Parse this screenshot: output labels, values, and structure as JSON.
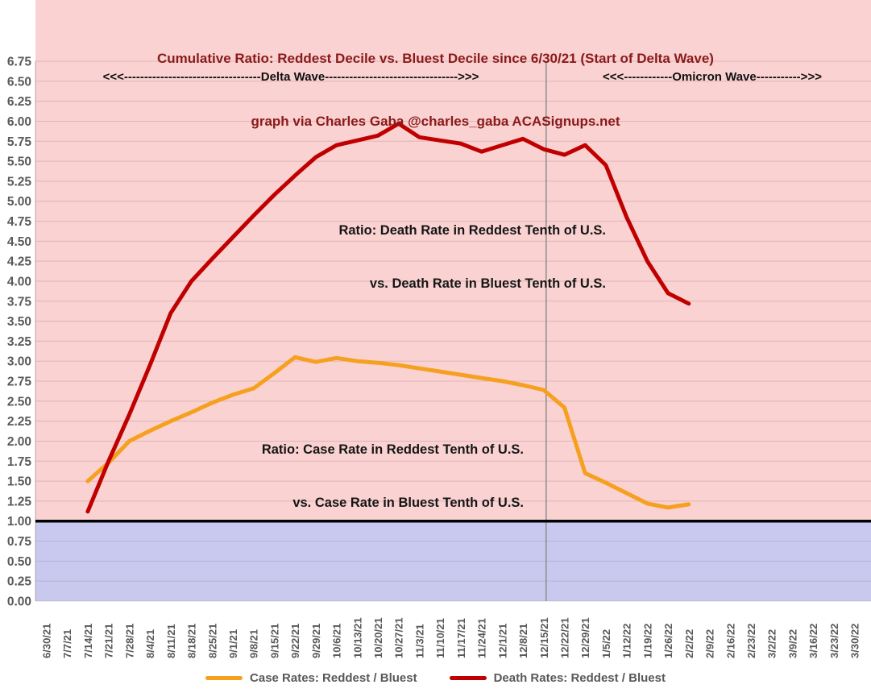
{
  "title": {
    "line1": "Cumulative Ratio: Reddest Decile vs. Bluest Decile since 6/30/21 (Start of Delta Wave)",
    "line2": "graph via Charles Gaba @charles_gaba ACASignups.net"
  },
  "annotations": {
    "delta_wave": "<<<----------------------------------Delta Wave--------------------------------->>>",
    "omicron_wave": "<<<------------Omicron Wave----------->>>",
    "death_ratio_line1": "Ratio: Death Rate in Reddest Tenth of U.S.",
    "death_ratio_line2": "vs. Death Rate in Bluest Tenth of U.S.",
    "case_ratio_line1": "Ratio: Case Rate in Reddest Tenth of U.S.",
    "case_ratio_line2": "vs. Case Rate in Bluest Tenth of U.S."
  },
  "colors": {
    "case_line": "#F5A01E",
    "death_line": "#C00000",
    "plot_bg_above_1": "#FAD2D2",
    "plot_bg_below_1": "#C9C9F0",
    "gridline": "rgba(130,75,90,0.22)",
    "baseline": "#000000",
    "divider": "#8C8C8C",
    "title_text": "#8B1A1A",
    "axis_text": "#595959",
    "legend_text": "#595959"
  },
  "legend": {
    "items": [
      {
        "label": "Case Rates: Reddest / Bluest"
      },
      {
        "label": "Death Rates: Reddest / Bluest"
      }
    ]
  },
  "chart_data": {
    "type": "line",
    "title": "Cumulative Ratio: Reddest Decile vs. Bluest Decile since 6/30/21 (Start of Delta Wave)",
    "subtitle": "graph via Charles Gaba @charles_gaba ACASignups.net",
    "xlabel": "",
    "ylabel": "",
    "ylim": [
      0,
      6.75
    ],
    "ytick_step": 0.25,
    "ytick_labels": [
      "0.00",
      "0.25",
      "0.50",
      "0.75",
      "1.00",
      "1.25",
      "1.50",
      "1.75",
      "2.00",
      "2.25",
      "2.50",
      "2.75",
      "3.00",
      "3.25",
      "3.50",
      "3.75",
      "4.00",
      "4.25",
      "4.50",
      "4.75",
      "5.00",
      "5.25",
      "5.50",
      "5.75",
      "6.00",
      "6.25",
      "6.50",
      "6.75"
    ],
    "grid": true,
    "legend_position": "bottom",
    "baseline_value": 1.0,
    "divider_category": "12/15/21",
    "categories": [
      "6/30/21",
      "7/7/21",
      "7/14/21",
      "7/21/21",
      "7/28/21",
      "8/4/21",
      "8/11/21",
      "8/18/21",
      "8/25/21",
      "9/1/21",
      "9/8/21",
      "9/15/21",
      "9/22/21",
      "9/29/21",
      "10/6/21",
      "10/13/21",
      "10/20/21",
      "10/27/21",
      "11/3/21",
      "11/10/21",
      "11/17/21",
      "11/24/21",
      "12/1/21",
      "12/8/21",
      "12/15/21",
      "12/22/21",
      "12/29/21",
      "1/5/22",
      "1/12/22",
      "1/19/22",
      "1/26/22",
      "2/2/22",
      "2/9/22",
      "2/16/22",
      "2/23/22",
      "3/2/22",
      "3/9/22",
      "3/16/22",
      "3/23/22",
      "3/30/22"
    ],
    "series": [
      {
        "name": "Case Rates: Reddest / Bluest",
        "color_key": "case_line",
        "start_index": 2,
        "values": [
          1.5,
          1.73,
          2.0,
          2.13,
          2.25,
          2.36,
          2.48,
          2.58,
          2.66,
          2.85,
          3.05,
          2.99,
          3.04,
          3.0,
          2.98,
          2.95,
          2.91,
          2.87,
          2.83,
          2.79,
          2.75,
          2.7,
          2.64,
          2.42,
          1.6,
          1.48,
          1.35,
          1.22,
          1.17,
          1.21
        ]
      },
      {
        "name": "Death Rates: Reddest / Bluest",
        "color_key": "death_line",
        "start_index": 2,
        "values": [
          1.12,
          1.75,
          2.33,
          2.95,
          3.6,
          4.0,
          4.28,
          4.55,
          4.82,
          5.08,
          5.32,
          5.55,
          5.7,
          5.76,
          5.82,
          5.97,
          5.8,
          5.76,
          5.72,
          5.62,
          5.7,
          5.78,
          5.65,
          5.58,
          5.7,
          5.45,
          4.8,
          4.25,
          3.85,
          3.72
        ]
      }
    ]
  }
}
